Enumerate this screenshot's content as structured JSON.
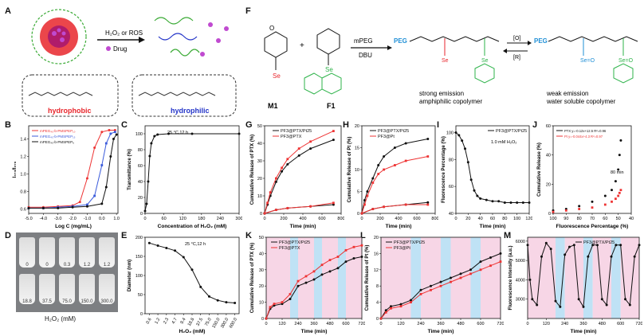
{
  "panels": {
    "A": "A",
    "B": "B",
    "C": "C",
    "D": "D",
    "E": "E",
    "F": "F",
    "G": "G",
    "H": "H",
    "I": "I",
    "J": "J",
    "K": "K",
    "L": "L",
    "M": "M"
  },
  "panel_A": {
    "arrow_label": "H₂O₂ or ROS",
    "drug_legend": "Drug",
    "left_label": "hydrophobic",
    "right_label": "hydrophilic",
    "hydrophobic_color": "#e8262c",
    "hydrophilic_color": "#2233c8"
  },
  "panel_D": {
    "row1": [
      "0",
      "0",
      "0.3",
      "1.2",
      "1.2"
    ],
    "row2": [
      "18.8",
      "37.5",
      "75.0",
      "150.0",
      "300.0"
    ],
    "xlabel": "H₂O₂ (mM)"
  },
  "panel_F": {
    "m1": "M1",
    "f1": "F1",
    "reagents_top": "mPEG",
    "reagents_bottom": "DBU",
    "oxid": "[O]",
    "red": "[R]",
    "left_caption_1": "strong emission",
    "left_caption_2": "amphiphilic copolymer",
    "right_caption_1": "weak emission",
    "right_caption_2": "water soluble copolymer",
    "peg": "PEG",
    "peg_color": "#1f8fd6",
    "fluor_color": "#2eb34a"
  },
  "chart_data": [
    {
      "id": "B",
      "type": "line",
      "xlabel": "Log C (mg/mL)",
      "ylabel": "I₃₇₃/I₃₇₆",
      "xlim": [
        -5,
        1.1
      ],
      "ylim": [
        0.55,
        1.55
      ],
      "xticks": [
        "-5.0",
        "-4.0",
        "-3.0",
        "-2.0",
        "-1.0",
        "0.0",
        "1.0"
      ],
      "yticks": [
        "0.6",
        "0.8",
        "1.0",
        "1.2",
        "1.4"
      ],
      "series": [
        {
          "name": "mPEG₄₅-b-PMSPEP₁₀",
          "color": "#e33",
          "x": [
            -5,
            -4,
            -3,
            -2,
            -1.5,
            -1,
            -0.5,
            0,
            0.5,
            0.9
          ],
          "y": [
            0.62,
            0.62,
            0.63,
            0.64,
            0.68,
            0.95,
            1.3,
            1.48,
            1.5,
            1.5
          ]
        },
        {
          "name": "mPEG₄₅-b-PMSPEP₁₅",
          "color": "#3b5bdb",
          "x": [
            -5,
            -4,
            -3,
            -2,
            -1,
            -0.5,
            0,
            0.3,
            0.6,
            0.9
          ],
          "y": [
            0.61,
            0.61,
            0.62,
            0.63,
            0.65,
            0.75,
            1.1,
            1.35,
            1.46,
            1.48
          ]
        },
        {
          "name": "mPEG₄₅-b-PMSPEP₆",
          "color": "#111",
          "x": [
            -5,
            -4,
            -3,
            -2,
            -1,
            0,
            0.3,
            0.6,
            0.8,
            1.0
          ],
          "y": [
            0.61,
            0.61,
            0.61,
            0.62,
            0.63,
            0.66,
            0.85,
            1.2,
            1.4,
            1.45
          ]
        }
      ]
    },
    {
      "id": "C",
      "type": "line",
      "annotation": "25 °C,12 h",
      "xlabel": "Concentration of H₂O₂ (mM)",
      "ylabel": "Transmittance (%)",
      "xlim": [
        0,
        300
      ],
      "ylim": [
        0,
        110
      ],
      "xticks": [
        "0",
        "60",
        "120",
        "180",
        "240",
        "300"
      ],
      "yticks": [
        "0",
        "20",
        "40",
        "60",
        "80",
        "100"
      ],
      "series": [
        {
          "name": "",
          "color": "#111",
          "x": [
            0,
            5,
            10,
            15,
            20,
            30,
            40,
            75,
            150,
            300
          ],
          "y": [
            3,
            12,
            40,
            72,
            88,
            97,
            99,
            100,
            100,
            100
          ]
        }
      ]
    },
    {
      "id": "E",
      "type": "line",
      "annotation": "25 °C,12 h",
      "xlabel": "H₂O₂ (mM)",
      "ylabel": "Diameter (nm)",
      "ylim": [
        0,
        200
      ],
      "categories": [
        "0.6",
        "1.2",
        "2.3",
        "4.7",
        "9.4",
        "18.8",
        "37.5",
        "75.0",
        "150.0",
        "300.0",
        "600.0"
      ],
      "yticks": [
        "0",
        "50",
        "100",
        "150",
        "200"
      ],
      "values": [
        185,
        178,
        172,
        165,
        148,
        115,
        70,
        45,
        35,
        30,
        28
      ]
    },
    {
      "id": "G",
      "type": "line",
      "xlabel": "Time (min)",
      "ylabel": "Cumulative Release of PTX (%)",
      "xlim": [
        0,
        800
      ],
      "ylim": [
        0,
        50
      ],
      "xticks": [
        "0",
        "200",
        "400",
        "600",
        "800"
      ],
      "yticks": [
        "0",
        "10",
        "20",
        "30",
        "40",
        "50"
      ],
      "series": [
        {
          "name": "PF3@PTX/Pt25",
          "color": "#111",
          "x": [
            0,
            30,
            60,
            120,
            180,
            240,
            360,
            480,
            720
          ],
          "y": [
            0,
            5,
            10,
            18,
            24,
            28,
            33,
            37,
            42
          ]
        },
        {
          "name": "PF3@PTX",
          "color": "#e33",
          "x": [
            0,
            30,
            60,
            120,
            180,
            240,
            360,
            480,
            720
          ],
          "y": [
            0,
            6,
            12,
            20,
            26,
            31,
            37,
            41,
            47
          ]
        },
        {
          "name": "",
          "color": "#111",
          "x": [
            0,
            120,
            240,
            480,
            720
          ],
          "y": [
            0,
            2,
            3,
            4,
            5
          ]
        },
        {
          "name": "",
          "color": "#e33",
          "x": [
            0,
            120,
            240,
            480,
            720
          ],
          "y": [
            0,
            2,
            3,
            4,
            6
          ]
        }
      ]
    },
    {
      "id": "H",
      "type": "line",
      "xlabel": "Time (min)",
      "ylabel": "Cumulative Release of Pt (%)",
      "xlim": [
        0,
        800
      ],
      "ylim": [
        0,
        20
      ],
      "xticks": [
        "0",
        "200",
        "400",
        "600",
        "800"
      ],
      "yticks": [
        "0",
        "5",
        "10",
        "15",
        "20"
      ],
      "series": [
        {
          "name": "PF3@PTX/Pt25",
          "color": "#111",
          "x": [
            0,
            30,
            60,
            120,
            180,
            240,
            360,
            480,
            720
          ],
          "y": [
            0,
            3,
            5,
            8,
            11,
            13,
            15,
            16,
            17
          ]
        },
        {
          "name": "PF3@Pt",
          "color": "#e33",
          "x": [
            0,
            30,
            60,
            120,
            180,
            240,
            360,
            480,
            720
          ],
          "y": [
            0,
            2,
            4,
            7,
            9,
            10,
            11,
            12,
            13
          ]
        },
        {
          "name": "",
          "color": "#111",
          "x": [
            0,
            120,
            240,
            480,
            720
          ],
          "y": [
            0,
            1,
            1.5,
            2,
            2.5
          ]
        },
        {
          "name": "",
          "color": "#e33",
          "x": [
            0,
            120,
            240,
            480,
            720
          ],
          "y": [
            0,
            1,
            1.5,
            2,
            2
          ]
        }
      ]
    },
    {
      "id": "I",
      "type": "line",
      "legend": "PF3@PTX/Pt25",
      "annotation": "1.0 mM H₂O₂",
      "xlabel": "Time (min)",
      "ylabel": "Fluorescence Percentage (%)",
      "xlim": [
        0,
        120
      ],
      "ylim": [
        40,
        105
      ],
      "xticks": [
        "0",
        "20",
        "40",
        "60",
        "80",
        "100",
        "120"
      ],
      "yticks": [
        "40",
        "60",
        "80",
        "100"
      ],
      "series": [
        {
          "name": "PF3@PTX/Pt25",
          "color": "#111",
          "x": [
            0,
            5,
            10,
            15,
            20,
            25,
            30,
            35,
            40,
            50,
            60,
            70,
            80,
            90,
            100,
            110,
            120
          ],
          "y": [
            100,
            98,
            94,
            88,
            78,
            65,
            57,
            53,
            51,
            50,
            49,
            49,
            48,
            48,
            48,
            48,
            48
          ]
        }
      ]
    },
    {
      "id": "J",
      "type": "scatter",
      "xlabel": "Fluorescence Percentage (%)",
      "ylabel": "Cumulative Release (%)",
      "xlim": [
        100,
        40
      ],
      "ylim": [
        0,
        60
      ],
      "xticks": [
        "100",
        "90",
        "80",
        "70",
        "60",
        "50",
        "40"
      ],
      "yticks": [
        "0",
        "20",
        "40",
        "60"
      ],
      "annotation": "80 min",
      "series": [
        {
          "name": "PTX",
          "fit": "y=-0.12x+12.5 R²=0.96",
          "color": "#111",
          "x": [
            100,
            90,
            80,
            70,
            60,
            55,
            52,
            50,
            49,
            48
          ],
          "y": [
            2,
            3,
            5,
            8,
            12,
            16,
            22,
            30,
            40,
            50
          ]
        },
        {
          "name": "Pt",
          "fit": "y=-0.044x+4.3 R²=0.97",
          "color": "#e33",
          "x": [
            100,
            90,
            80,
            70,
            60,
            55,
            52,
            50,
            49,
            48
          ],
          "y": [
            1,
            2,
            3,
            4,
            6,
            8,
            10,
            12,
            14,
            16
          ]
        }
      ]
    },
    {
      "id": "K",
      "type": "line",
      "xlabel": "Time (min)",
      "ylabel": "Cumulative Release of PTX (%)",
      "xlim": [
        0,
        720
      ],
      "ylim": [
        0,
        50
      ],
      "xticks": [
        "0",
        "120",
        "240",
        "360",
        "480",
        "600",
        "720"
      ],
      "yticks": [
        "0",
        "10",
        "20",
        "30",
        "40",
        "50"
      ],
      "series": [
        {
          "name": "PF3@PTX/Pt25",
          "color": "#111",
          "x": [
            0,
            30,
            60,
            120,
            180,
            240,
            300,
            360,
            420,
            480,
            540,
            600,
            660,
            720
          ],
          "y": [
            0,
            6,
            8,
            9,
            12,
            20,
            22,
            24,
            27,
            29,
            31,
            35,
            37,
            38
          ]
        },
        {
          "name": "PF3@PTX",
          "color": "#e33",
          "x": [
            0,
            30,
            60,
            120,
            180,
            240,
            300,
            360,
            420,
            480,
            540,
            600,
            660,
            720
          ],
          "y": [
            0,
            7,
            9,
            10,
            15,
            23,
            26,
            29,
            33,
            36,
            38,
            42,
            44,
            45
          ]
        }
      ]
    },
    {
      "id": "L",
      "type": "line",
      "xlabel": "Time (min)",
      "ylabel": "Cumulative Release of Pt (%)",
      "xlim": [
        0,
        720
      ],
      "ylim": [
        0,
        20
      ],
      "xticks": [
        "0",
        "120",
        "240",
        "360",
        "480",
        "600",
        "720"
      ],
      "yticks": [
        "0",
        "4",
        "8",
        "12",
        "16",
        "20"
      ],
      "series": [
        {
          "name": "PF3@PTX/Pt25",
          "color": "#111",
          "x": [
            0,
            30,
            60,
            120,
            180,
            240,
            300,
            360,
            420,
            480,
            540,
            600,
            660,
            720
          ],
          "y": [
            0,
            2,
            3,
            3.5,
            4.5,
            7,
            8,
            9,
            10,
            11,
            12,
            14,
            15,
            16
          ]
        },
        {
          "name": "PF3@Pt",
          "color": "#e33",
          "x": [
            0,
            30,
            60,
            120,
            180,
            240,
            300,
            360,
            420,
            480,
            540,
            600,
            660,
            720
          ],
          "y": [
            0,
            1.5,
            2.5,
            3,
            4,
            6,
            7,
            8,
            9,
            10,
            11,
            12,
            13,
            14
          ]
        }
      ]
    },
    {
      "id": "M",
      "type": "line",
      "legend": "PF3@PTX/Pt25",
      "xlabel": "Time (min)",
      "ylabel": "Fluorescence Intensity (a.u.)",
      "xlim": [
        0,
        720
      ],
      "ylim": [
        2000,
        6200
      ],
      "xticks": [
        "0",
        "120",
        "240",
        "360",
        "480",
        "600",
        "720"
      ],
      "yticks": [
        "3000",
        "4000",
        "5000",
        "6000"
      ],
      "series": [
        {
          "name": "PF3@PTX/Pt25",
          "color": "#111",
          "x": [
            0,
            15,
            30,
            60,
            90,
            120,
            150,
            180,
            210,
            240,
            270,
            300,
            330,
            360,
            390,
            420,
            450,
            480,
            510,
            540,
            570,
            600,
            630,
            660,
            690,
            720
          ],
          "y": [
            5800,
            4000,
            3000,
            2700,
            5200,
            5900,
            5600,
            2900,
            2600,
            5300,
            5700,
            5800,
            3000,
            2600,
            5200,
            5800,
            5800,
            3000,
            2700,
            5200,
            5800,
            5800,
            3000,
            2700,
            5200,
            5800
          ]
        }
      ]
    }
  ]
}
